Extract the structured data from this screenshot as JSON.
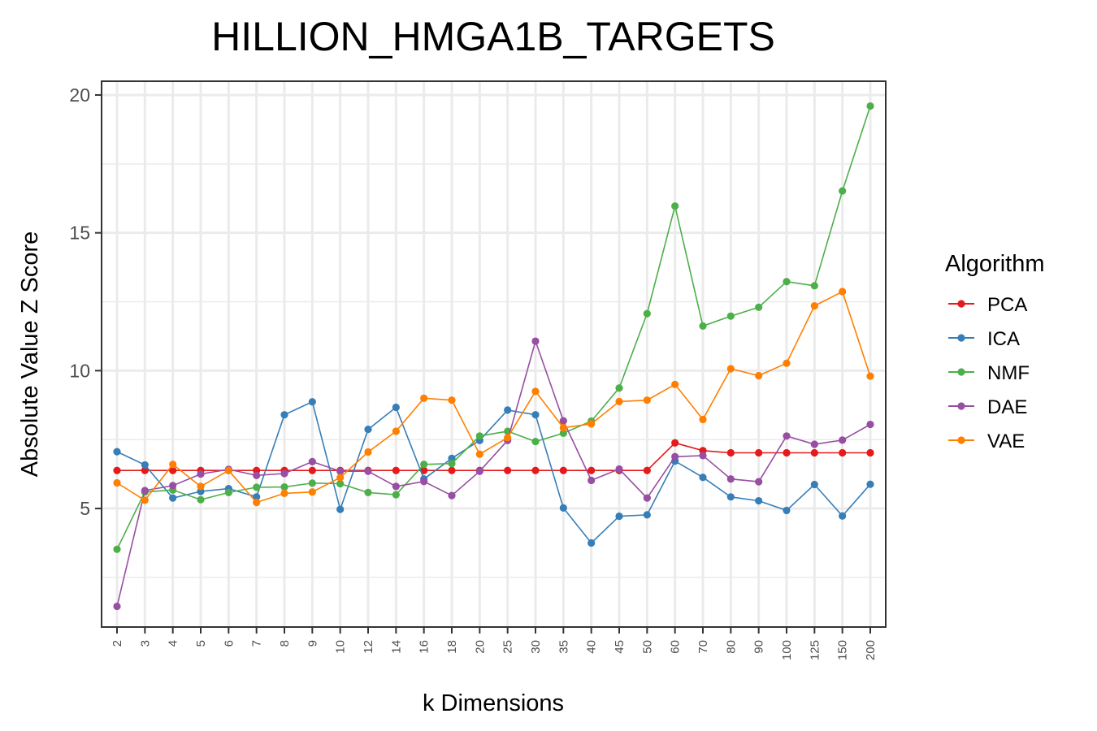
{
  "chart_data": {
    "type": "line",
    "title": "HILLION_HMGA1B_TARGETS",
    "xlabel": "k Dimensions",
    "ylabel": "Absolute Value Z Score",
    "categories": [
      "2",
      "3",
      "4",
      "5",
      "6",
      "7",
      "8",
      "9",
      "10",
      "12",
      "14",
      "16",
      "18",
      "20",
      "25",
      "30",
      "35",
      "40",
      "45",
      "50",
      "60",
      "70",
      "80",
      "90",
      "100",
      "125",
      "150",
      "200"
    ],
    "yticks": [
      5,
      10,
      15,
      20
    ],
    "ylim": [
      0.7,
      20.5
    ],
    "grid": true,
    "legend": {
      "title": "Algorithm",
      "position": "right"
    },
    "series": [
      {
        "name": "PCA",
        "color": "#e41a1c",
        "values": [
          6.38,
          6.38,
          6.38,
          6.38,
          6.38,
          6.38,
          6.38,
          6.38,
          6.38,
          6.38,
          6.38,
          6.38,
          6.38,
          6.38,
          6.38,
          6.38,
          6.38,
          6.38,
          6.38,
          6.38,
          7.38,
          7.1,
          7.02,
          7.02,
          7.02,
          7.02,
          7.02,
          7.02
        ]
      },
      {
        "name": "ICA",
        "color": "#377eb8",
        "values": [
          7.06,
          6.58,
          5.38,
          5.62,
          5.72,
          5.42,
          8.4,
          8.87,
          4.97,
          7.87,
          8.67,
          6.07,
          6.82,
          7.47,
          8.57,
          8.4,
          5.02,
          3.75,
          4.72,
          4.77,
          6.72,
          6.13,
          5.42,
          5.28,
          4.93,
          5.87,
          4.73,
          5.88
        ]
      },
      {
        "name": "NMF",
        "color": "#4daf4a",
        "values": [
          3.52,
          5.6,
          5.67,
          5.32,
          5.58,
          5.77,
          5.78,
          5.92,
          5.9,
          5.58,
          5.5,
          6.6,
          6.63,
          7.63,
          7.8,
          7.43,
          7.73,
          8.17,
          9.37,
          12.07,
          15.97,
          11.62,
          11.98,
          12.3,
          13.23,
          13.08,
          16.52,
          19.6
        ]
      },
      {
        "name": "DAE",
        "color": "#984ea3",
        "values": [
          1.45,
          5.65,
          5.83,
          6.25,
          6.42,
          6.2,
          6.27,
          6.7,
          6.35,
          6.35,
          5.8,
          5.98,
          5.47,
          6.35,
          7.47,
          11.07,
          8.18,
          6.02,
          6.43,
          5.38,
          6.88,
          6.92,
          6.07,
          5.97,
          7.63,
          7.33,
          7.48,
          8.05
        ]
      },
      {
        "name": "VAE",
        "color": "#ff7f00",
        "values": [
          5.93,
          5.3,
          6.6,
          5.8,
          6.38,
          5.22,
          5.55,
          5.6,
          6.12,
          7.05,
          7.8,
          9.0,
          8.93,
          6.97,
          7.57,
          9.25,
          7.93,
          8.07,
          8.88,
          8.93,
          9.5,
          8.23,
          10.07,
          9.82,
          10.27,
          12.35,
          12.87,
          9.8
        ]
      }
    ]
  }
}
